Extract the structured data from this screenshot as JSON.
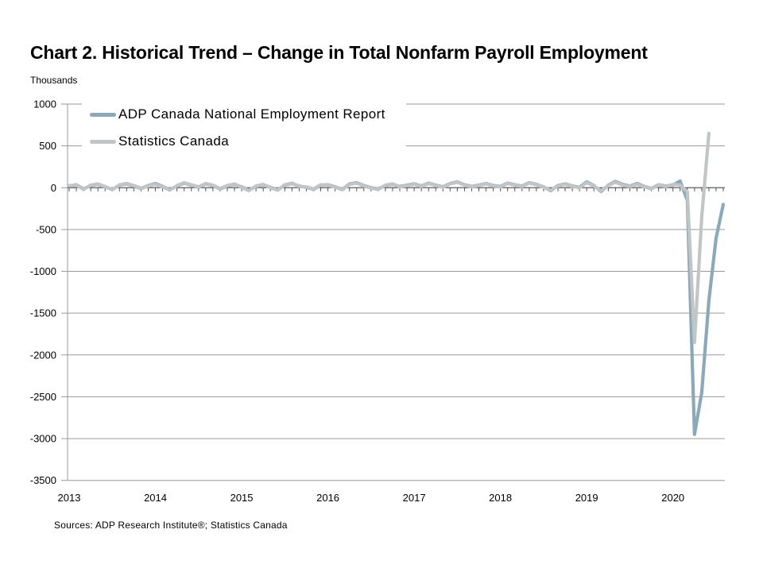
{
  "title": "Chart 2. Historical Trend – Change in Total Nonfarm Payroll Employment",
  "units_label": "Thousands",
  "source_note": "Sources: ADP Research Institute®; Statistics Canada",
  "colors": {
    "adp_line": "#8CA9BA",
    "statcan_line": "#C2C5C6",
    "gridline": "#9a9a9a",
    "zero_axis": "#4d4d4d",
    "text": "#000000"
  },
  "chart_data": {
    "type": "line",
    "title": "Chart 2. Historical Trend – Change in Total Nonfarm Payroll Employment",
    "ylabel": "Thousands",
    "ylim": [
      -3500,
      1000
    ],
    "yticks": [
      1000,
      500,
      0,
      -500,
      -1000,
      -1500,
      -2000,
      -2500,
      -3000,
      -3500
    ],
    "x_year_labels": [
      "2013",
      "2014",
      "2015",
      "2016",
      "2017",
      "2018",
      "2019",
      "2020"
    ],
    "x_start": "2013-01",
    "frequency": "monthly",
    "grid": true,
    "legend_position": "top-left",
    "series": [
      {
        "name": "ADP Canada National Employment Report",
        "color": "#8CA9BA",
        "values": [
          20,
          35,
          -15,
          25,
          40,
          10,
          -20,
          30,
          45,
          20,
          -10,
          25,
          50,
          15,
          -25,
          20,
          55,
          30,
          5,
          45,
          25,
          -15,
          20,
          40,
          10,
          -30,
          15,
          35,
          5,
          -25,
          30,
          50,
          20,
          5,
          -20,
          30,
          35,
          10,
          -20,
          45,
          60,
          25,
          0,
          -15,
          25,
          40,
          15,
          30,
          45,
          20,
          55,
          30,
          10,
          50,
          70,
          35,
          15,
          30,
          50,
          25,
          15,
          55,
          35,
          20,
          60,
          40,
          10,
          -35,
          25,
          45,
          20,
          5,
          70,
          25,
          -45,
          30,
          75,
          40,
          20,
          50,
          15,
          -10,
          35,
          20,
          30,
          80,
          -150,
          -2950,
          -2450,
          -1350,
          -600,
          -200
        ]
      },
      {
        "name": "Statistics Canada",
        "color": "#C2C5C6",
        "values": [
          25,
          30,
          -20,
          30,
          45,
          15,
          -25,
          35,
          50,
          25,
          -5,
          20,
          40,
          10,
          -30,
          25,
          60,
          35,
          10,
          50,
          30,
          -10,
          25,
          45,
          5,
          -35,
          20,
          40,
          0,
          -30,
          35,
          55,
          15,
          10,
          -15,
          35,
          30,
          5,
          -25,
          40,
          55,
          20,
          -5,
          -20,
          30,
          45,
          10,
          25,
          40,
          15,
          50,
          25,
          5,
          45,
          65,
          30,
          10,
          25,
          45,
          20,
          10,
          50,
          30,
          15,
          55,
          35,
          5,
          -30,
          20,
          40,
          15,
          0,
          60,
          20,
          -35,
          25,
          65,
          30,
          15,
          40,
          10,
          -15,
          30,
          15,
          40,
          30,
          -50,
          -1850,
          -350,
          650
        ]
      }
    ]
  }
}
